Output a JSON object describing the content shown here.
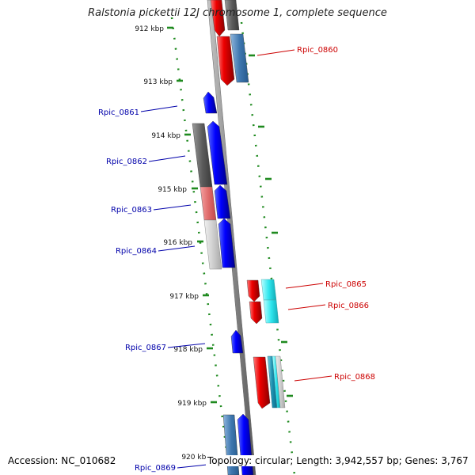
{
  "title": "Ralstonia pickettii 12J chromosome 1, complete sequence",
  "accession_text": "Accession: NC_010682",
  "summary_text": "Topology: circular; Length: 3,942,557 bp; Genes: 3,767",
  "colors": {
    "forward_gene": "#0000ff",
    "reverse_gene": "#ee0000",
    "forward_label": "#0000aa",
    "reverse_label": "#cc0000",
    "tick": "#1f8a1f",
    "axis": "#888888"
  },
  "kbp_ticks": [
    "912 kbp",
    "913 kbp",
    "914 kbp",
    "915 kbp",
    "916 kbp",
    "917 kbp",
    "918 kbp",
    "919 kbp",
    "920 kbp"
  ],
  "gene_labels": [
    {
      "name": "Rpic_0860",
      "strand": "reverse"
    },
    {
      "name": "Rpic_0861",
      "strand": "forward"
    },
    {
      "name": "Rpic_0862",
      "strand": "forward"
    },
    {
      "name": "Rpic_0863",
      "strand": "forward"
    },
    {
      "name": "Rpic_0864",
      "strand": "forward"
    },
    {
      "name": "Rpic_0865",
      "strand": "reverse"
    },
    {
      "name": "Rpic_0866",
      "strand": "reverse"
    },
    {
      "name": "Rpic_0867",
      "strand": "forward"
    },
    {
      "name": "Rpic_0868",
      "strand": "reverse"
    },
    {
      "name": "Rpic_0869",
      "strand": "forward"
    }
  ]
}
